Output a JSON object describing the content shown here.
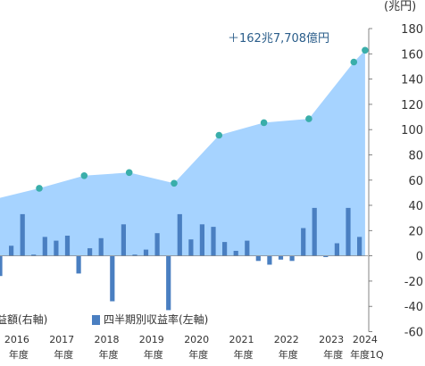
{
  "chart_data": {
    "type": "bar",
    "yunit": "(兆円)",
    "ylim": [
      -60,
      180
    ],
    "yticks": [
      -60,
      -40,
      -20,
      0,
      20,
      40,
      60,
      80,
      100,
      120,
      140,
      160,
      180
    ],
    "grid": false,
    "legend_position": "bottom",
    "annotation": "＋162兆7,708億円",
    "x_axis_labels": [
      {
        "year": "2016",
        "suffix": "年度",
        "index": 1
      },
      {
        "year": "2017",
        "suffix": "年度",
        "index": 5
      },
      {
        "year": "2018",
        "suffix": "年度",
        "index": 9
      },
      {
        "year": "2019",
        "suffix": "年度",
        "index": 13
      },
      {
        "year": "2020",
        "suffix": "年度",
        "index": 17
      },
      {
        "year": "2021",
        "suffix": "年度",
        "index": 21
      },
      {
        "year": "2022",
        "suffix": "年度",
        "index": 25
      },
      {
        "year": "2023",
        "suffix": "年度",
        "index": 29
      },
      {
        "year": "2024",
        "suffix": "年度1Q",
        "index": 32
      }
    ],
    "series": [
      {
        "name": "益額(右軸)",
        "kind": "area",
        "axis": "right",
        "color": "#a6d3ff",
        "marker_color": "#3aaeaa",
        "points": [
          {
            "i": -0.5,
            "v": 46
          },
          {
            "i": 3,
            "v": 53.5
          },
          {
            "i": 7,
            "v": 63.5
          },
          {
            "i": 11,
            "v": 66
          },
          {
            "i": 15,
            "v": 57.5
          },
          {
            "i": 19,
            "v": 95.5
          },
          {
            "i": 23,
            "v": 105.5
          },
          {
            "i": 27,
            "v": 108.5
          },
          {
            "i": 31,
            "v": 153.5
          },
          {
            "i": 32,
            "v": 162.8
          }
        ],
        "markers": [
          3,
          7,
          11,
          15,
          19,
          23,
          27,
          31,
          32
        ]
      },
      {
        "name": "四半期別収益率(左軸)",
        "kind": "bar",
        "axis": "left",
        "color": "#4a7fc1",
        "start_index": -0.5,
        "values": [
          -16,
          8,
          33,
          1,
          15,
          12,
          16,
          -14,
          6,
          14,
          -36,
          25,
          1,
          5,
          18,
          -43,
          33,
          13,
          25,
          23,
          11,
          4,
          12,
          -4,
          -7,
          -3,
          -4,
          22,
          38,
          -1,
          10,
          38,
          15
        ]
      }
    ]
  }
}
